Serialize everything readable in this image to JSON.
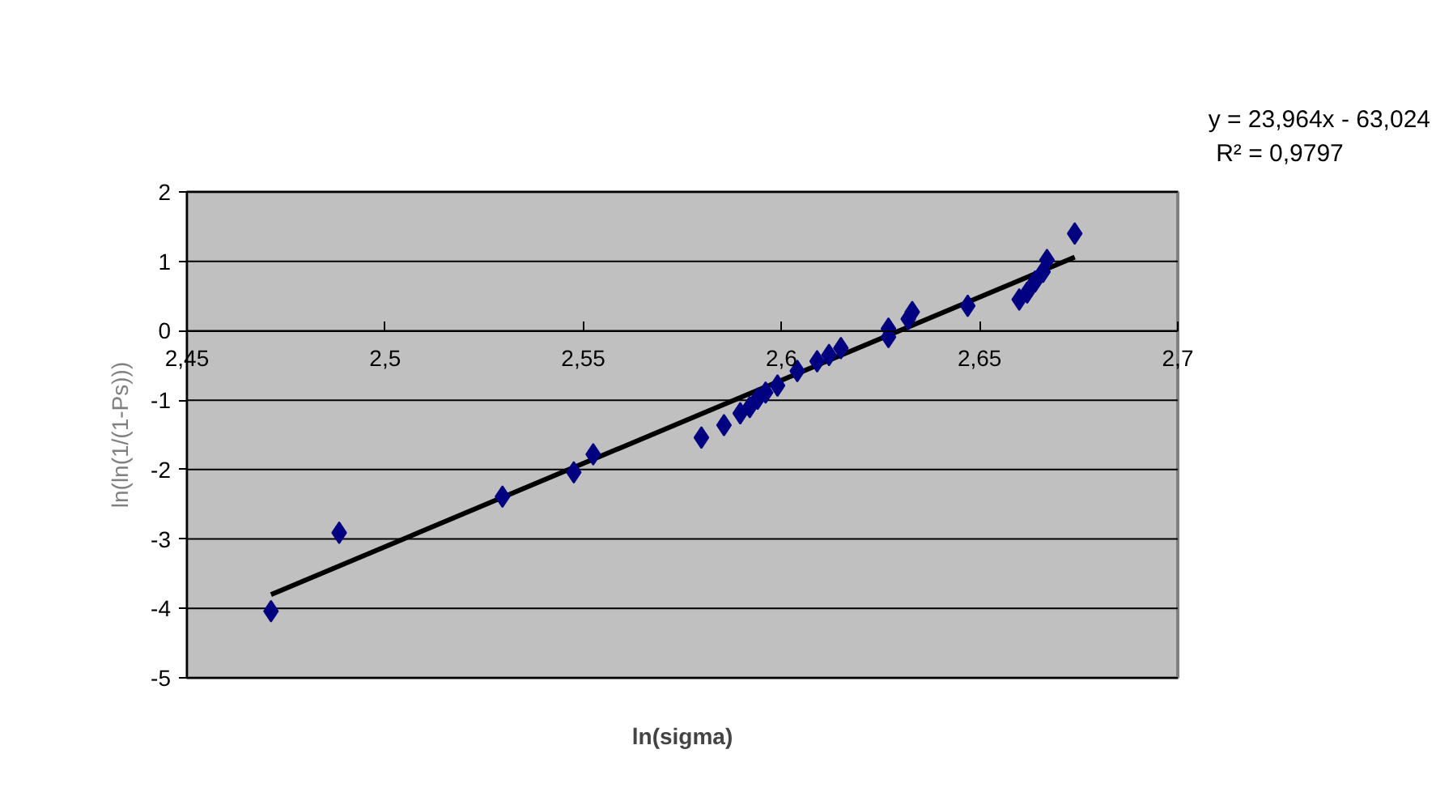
{
  "chart_data": {
    "type": "scatter",
    "xlabel": "ln(sigma)",
    "ylabel": "ln(ln(1/(1-Ps)))",
    "annotations": [
      "y = 23,964x - 63,024",
      "R² = 0,9797"
    ],
    "series": [
      {
        "color": "#000080",
        "marker": "diamond",
        "x": [
          2.4712,
          2.4884,
          2.5296,
          2.5476,
          2.5525,
          2.5798,
          2.5855,
          2.5896,
          2.592,
          2.594,
          2.596,
          2.599,
          2.604,
          2.609,
          2.612,
          2.615,
          2.627,
          2.627,
          2.632,
          2.633,
          2.647,
          2.66,
          2.662,
          2.664,
          2.666,
          2.667,
          2.674
        ],
        "values": [
          -4.04,
          -2.91,
          -2.39,
          -2.04,
          -1.78,
          -1.54,
          -1.36,
          -1.19,
          -1.1,
          -0.98,
          -0.89,
          -0.79,
          -0.58,
          -0.44,
          -0.35,
          -0.25,
          -0.09,
          0.03,
          0.17,
          0.27,
          0.36,
          0.45,
          0.55,
          0.71,
          0.85,
          1.02,
          1.4
        ]
      },
      {
        "type": "line",
        "color": "#000000",
        "marker": "none",
        "x": [
          2.4712,
          2.674
        ],
        "values": [
          -3.8,
          1.06
        ]
      }
    ],
    "xlim": [
      2.45,
      2.7
    ],
    "ylim": [
      -5,
      2
    ],
    "xticks": [
      {
        "value": 2.45,
        "label": "2,45"
      },
      {
        "value": 2.5,
        "label": "2,5"
      },
      {
        "value": 2.55,
        "label": "2,55"
      },
      {
        "value": 2.6,
        "label": "2,6"
      },
      {
        "value": 2.65,
        "label": "2,65"
      },
      {
        "value": 2.7,
        "label": "2,7"
      }
    ],
    "yticks": [
      -5,
      -4,
      -3,
      -2,
      -1,
      0,
      1,
      2
    ],
    "grid": "y"
  }
}
